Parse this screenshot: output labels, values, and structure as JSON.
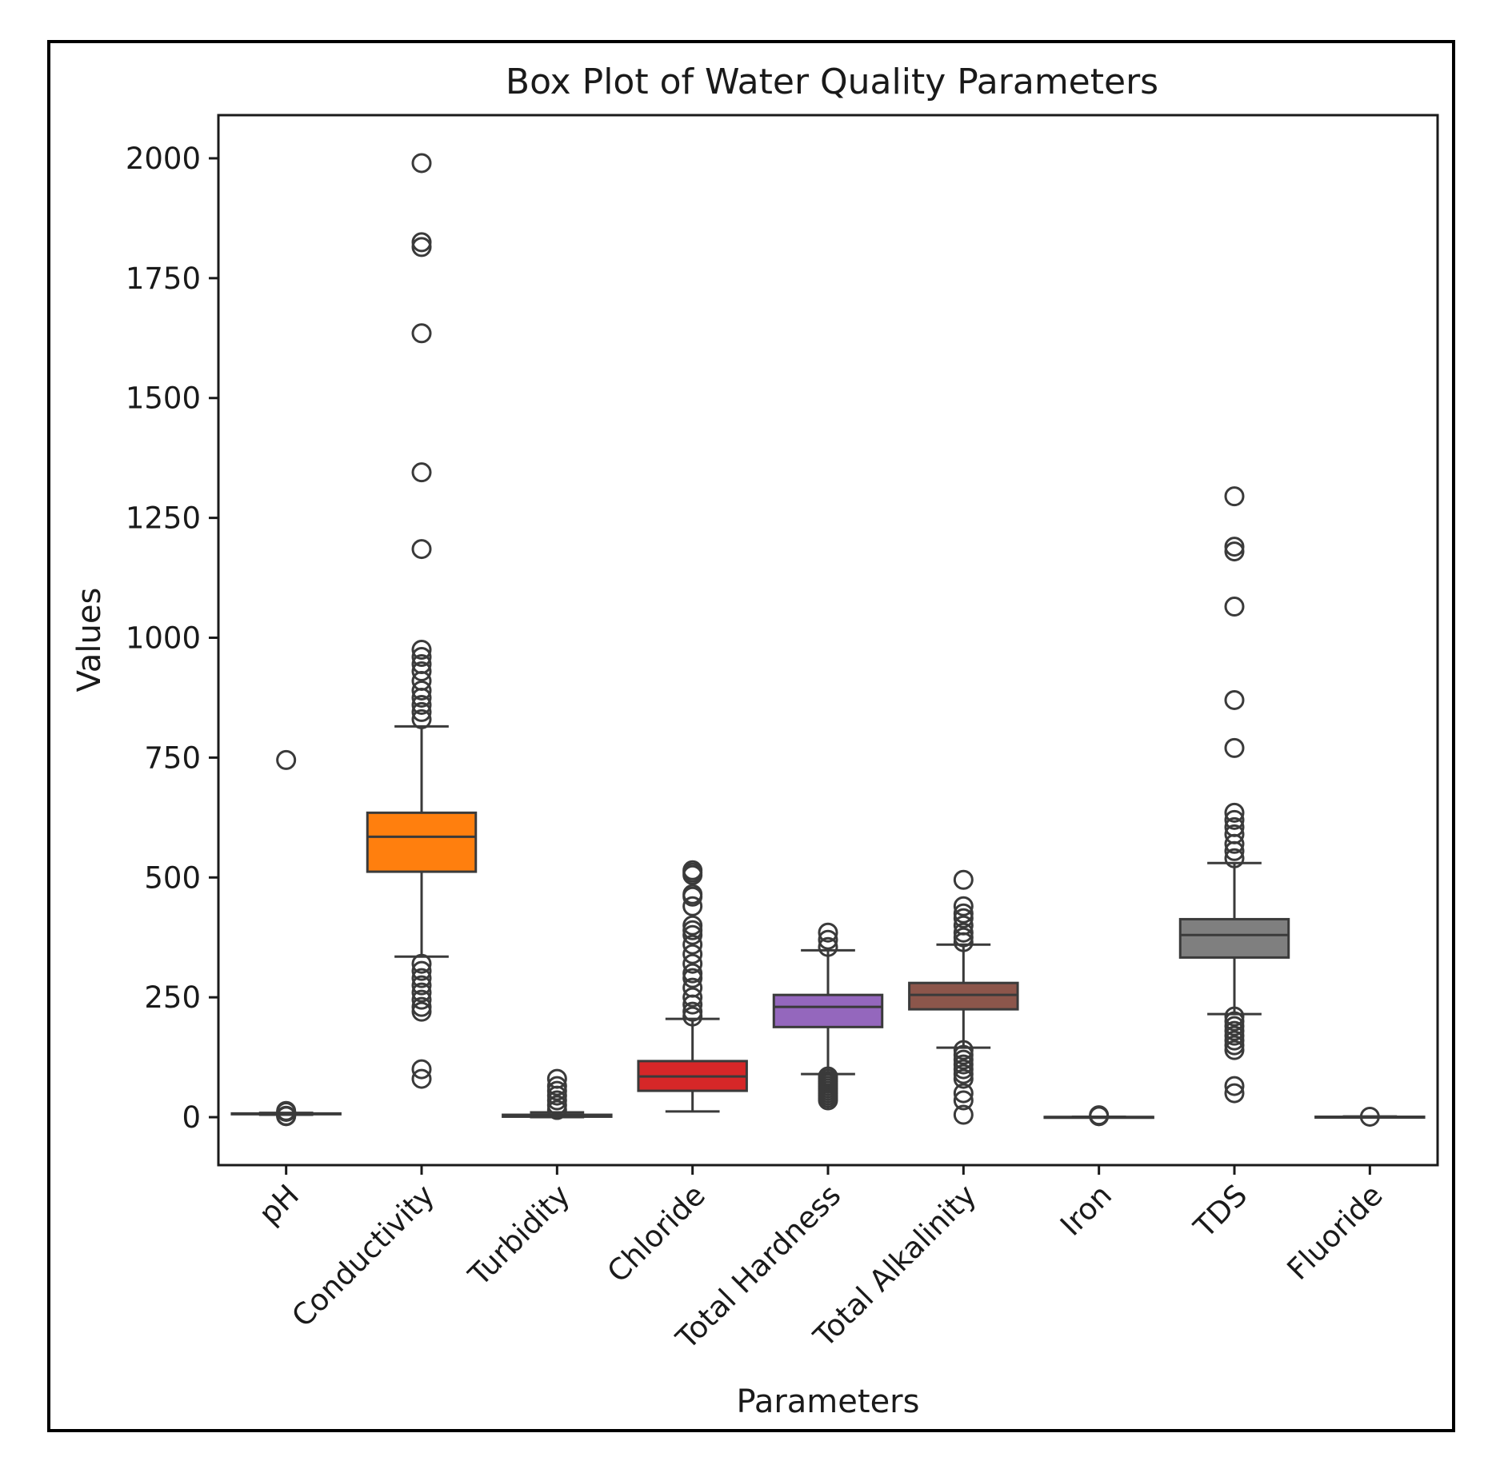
{
  "chart_data": {
    "type": "box",
    "title": "Box Plot of Water Quality Parameters",
    "xlabel": "Parameters",
    "ylabel": "Values",
    "ylim": [
      -100,
      2090
    ],
    "yticks": [
      0,
      250,
      500,
      750,
      1000,
      1250,
      1500,
      1750,
      2000
    ],
    "grid": false,
    "categories": [
      "pH",
      "Conductivity",
      "Turbidity",
      "Chloride",
      "Total Hardness",
      "Total Alkalinity",
      "Iron",
      "TDS",
      "Fluoride"
    ],
    "series": [
      {
        "name": "pH",
        "color": "#1f77b4",
        "whisker_low": 5,
        "q1": 6.5,
        "median": 7.2,
        "q3": 7.8,
        "whisker_high": 9,
        "outliers": [
          2,
          3,
          11,
          13,
          745
        ]
      },
      {
        "name": "Conductivity",
        "color": "#ff7f0e",
        "whisker_low": 335,
        "q1": 512,
        "median": 585,
        "q3": 635,
        "whisker_high": 815,
        "outliers": [
          80,
          100,
          220,
          230,
          245,
          260,
          275,
          290,
          305,
          320,
          830,
          845,
          860,
          875,
          890,
          910,
          930,
          945,
          960,
          975,
          1185,
          1345,
          1635,
          1815,
          1825,
          1990
        ]
      },
      {
        "name": "Turbidity",
        "color": "#2ca02c",
        "whisker_low": 0,
        "q1": 1,
        "median": 2.5,
        "q3": 5,
        "whisker_high": 10,
        "outliers": [
          15,
          25,
          35,
          45,
          55,
          65,
          80
        ]
      },
      {
        "name": "Chloride",
        "color": "#d62728",
        "whisker_low": 12,
        "q1": 55,
        "median": 85,
        "q3": 117,
        "whisker_high": 205,
        "outliers": [
          210,
          220,
          235,
          250,
          270,
          290,
          300,
          320,
          340,
          360,
          380,
          390,
          400,
          440,
          460,
          465,
          505,
          510,
          515
        ]
      },
      {
        "name": "Total Hardness",
        "color": "#9467bd",
        "whisker_low": 90,
        "q1": 188,
        "median": 230,
        "q3": 255,
        "whisker_high": 348,
        "outliers": [
          35,
          40,
          45,
          50,
          55,
          60,
          65,
          70,
          75,
          80,
          85,
          355,
          370,
          385
        ]
      },
      {
        "name": "Total Alkalinity",
        "color": "#8c564b",
        "whisker_low": 145,
        "q1": 225,
        "median": 255,
        "q3": 280,
        "whisker_high": 360,
        "outliers": [
          5,
          35,
          50,
          80,
          90,
          100,
          110,
          120,
          130,
          140,
          365,
          375,
          385,
          400,
          415,
          425,
          440,
          495
        ]
      },
      {
        "name": "Iron",
        "color": "#e377c2",
        "whisker_low": 0,
        "q1": 0.1,
        "median": 0.3,
        "q3": 0.5,
        "whisker_high": 1,
        "outliers": [
          2,
          4
        ]
      },
      {
        "name": "TDS",
        "color": "#7f7f7f",
        "whisker_low": 215,
        "q1": 333,
        "median": 380,
        "q3": 413,
        "whisker_high": 530,
        "outliers": [
          50,
          65,
          140,
          150,
          160,
          170,
          180,
          190,
          200,
          210,
          540,
          555,
          570,
          590,
          605,
          620,
          635,
          770,
          870,
          1065,
          1180,
          1190,
          1295
        ]
      },
      {
        "name": "Fluoride",
        "color": "#bcbd22",
        "whisker_low": 0,
        "q1": 0.3,
        "median": 0.6,
        "q3": 0.9,
        "whisker_high": 1.5,
        "outliers": [
          1
        ]
      }
    ]
  }
}
